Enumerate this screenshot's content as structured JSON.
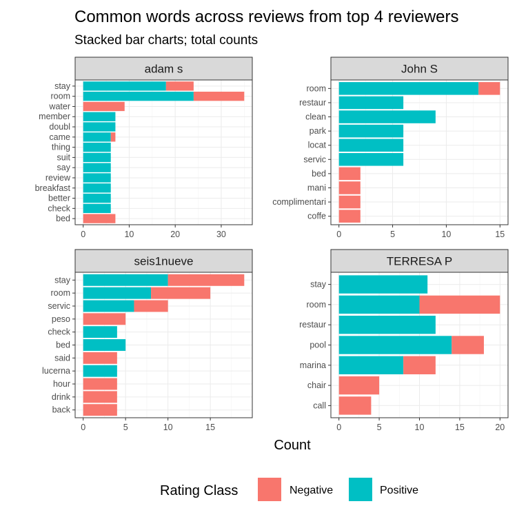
{
  "title": "Common words across reviews from top 4 reviewers",
  "subtitle": "Stacked bar charts; total counts",
  "x_axis_title": "Count",
  "legend": {
    "title": "Rating Class",
    "entries": [
      {
        "label": "Negative",
        "color": "#F8766D"
      },
      {
        "label": "Positive",
        "color": "#00BFC4"
      }
    ]
  },
  "chart_data": [
    {
      "type": "bar",
      "orientation": "horizontal",
      "stacked": true,
      "panel": "adam s",
      "categories": [
        "stay",
        "room",
        "water",
        "member",
        "doubl",
        "came",
        "thing",
        "suit",
        "say",
        "review",
        "breakfast",
        "better",
        "check",
        "bed"
      ],
      "series": [
        {
          "name": "Positive",
          "values": [
            18,
            24,
            0,
            7,
            7,
            6,
            6,
            6,
            6,
            6,
            6,
            6,
            6,
            0
          ]
        },
        {
          "name": "Negative",
          "values": [
            6,
            11,
            9,
            0,
            0,
            1,
            0,
            0,
            0,
            0,
            0,
            0,
            0,
            7
          ]
        }
      ],
      "xlim": [
        -1.75,
        36.75
      ],
      "xticks": [
        0,
        10,
        20,
        30
      ]
    },
    {
      "type": "bar",
      "orientation": "horizontal",
      "stacked": true,
      "panel": "John S",
      "categories": [
        "room",
        "restaur",
        "clean",
        "park",
        "locat",
        "servic",
        "bed",
        "mani",
        "complimentari",
        "coffe"
      ],
      "series": [
        {
          "name": "Positive",
          "values": [
            13,
            6,
            9,
            6,
            6,
            6,
            0,
            0,
            0,
            0
          ]
        },
        {
          "name": "Negative",
          "values": [
            2,
            0,
            0,
            0,
            0,
            0,
            2,
            2,
            2,
            2
          ]
        }
      ],
      "xlim": [
        -0.75,
        15.75
      ],
      "xticks": [
        0,
        5,
        10,
        15
      ]
    },
    {
      "type": "bar",
      "orientation": "horizontal",
      "stacked": true,
      "panel": "seis1nueve",
      "categories": [
        "stay",
        "room",
        "servic",
        "peso",
        "check",
        "bed",
        "said",
        "lucerna",
        "hour",
        "drink",
        "back"
      ],
      "series": [
        {
          "name": "Positive",
          "values": [
            10,
            8,
            6,
            0,
            4,
            5,
            0,
            4,
            0,
            0,
            0
          ]
        },
        {
          "name": "Negative",
          "values": [
            9,
            7,
            4,
            5,
            0,
            0,
            4,
            0,
            4,
            4,
            4
          ]
        }
      ],
      "xlim": [
        -0.95,
        19.95
      ],
      "xticks": [
        0,
        5,
        10,
        15
      ]
    },
    {
      "type": "bar",
      "orientation": "horizontal",
      "stacked": true,
      "panel": "TERRESA P",
      "categories": [
        "stay",
        "room",
        "restaur",
        "pool",
        "marina",
        "chair",
        "call"
      ],
      "series": [
        {
          "name": "Positive",
          "values": [
            11,
            10,
            12,
            14,
            8,
            0,
            0
          ]
        },
        {
          "name": "Negative",
          "values": [
            0,
            10,
            0,
            4,
            4,
            5,
            4
          ]
        }
      ],
      "xlim": [
        -1,
        21
      ],
      "xticks": [
        0,
        5,
        10,
        15,
        20
      ]
    }
  ]
}
